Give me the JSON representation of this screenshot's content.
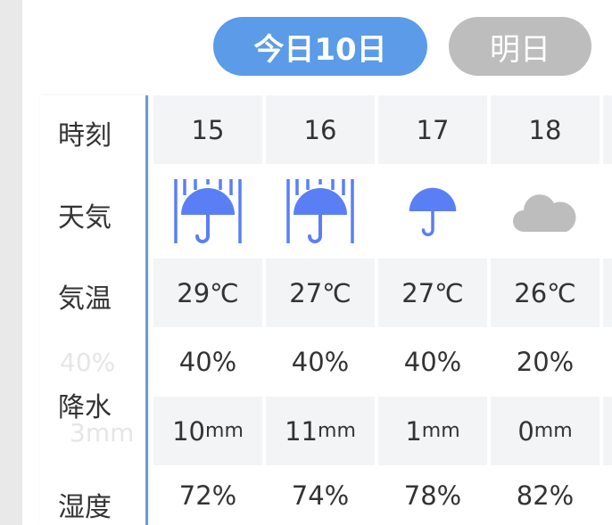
{
  "tabs": [
    {
      "label": "今日10日",
      "active": true
    },
    {
      "label": "明日",
      "active": false
    }
  ],
  "labels": {
    "time": "時刻",
    "weather": "天気",
    "temp": "気温",
    "precip": "降水",
    "humidity": "湿度"
  },
  "ghost": {
    "precip_prob": "40%",
    "precip_amount": "3mm"
  },
  "columns": [
    {
      "hour": "15",
      "weather": "heavy-rain-icon",
      "temp": "29℃",
      "prob": "40%",
      "amount": "10",
      "humidity": "72%"
    },
    {
      "hour": "16",
      "weather": "heavy-rain-icon",
      "temp": "27℃",
      "prob": "40%",
      "amount": "11",
      "humidity": "74%"
    },
    {
      "hour": "17",
      "weather": "rain-umbrella-icon",
      "temp": "27℃",
      "prob": "40%",
      "amount": "1",
      "humidity": "78%"
    },
    {
      "hour": "18",
      "weather": "cloud-icon",
      "temp": "26℃",
      "prob": "20%",
      "amount": "0",
      "humidity": "82%"
    }
  ],
  "units": {
    "mm": "mm"
  },
  "colors": {
    "accent": "#5b9be8",
    "icon_blue": "#5a7ff5",
    "cloud": "#bdbdbd",
    "border": "#6a9ad8"
  }
}
